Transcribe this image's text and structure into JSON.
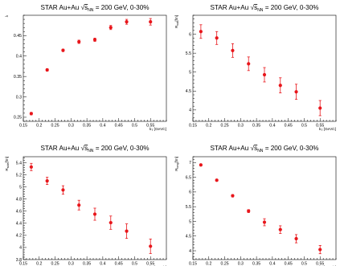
{
  "chart_data": [
    {
      "type": "scatter",
      "title_prefix": "STAR Au+Au",
      "title_sqrt_s": "s",
      "title_sqrt_sub": "NN",
      "title_suffix": "= 200 GeV, 0-30%",
      "ylabel": "λ",
      "ylabel_sub": "",
      "ylabel_unit": "",
      "xlabel": "k",
      "xlabel_sub": "T",
      "xlabel_unit": "[GeV/c]",
      "xlim": [
        0.15,
        0.6
      ],
      "ylim": [
        0.24,
        0.5
      ],
      "xticks": [
        0.15,
        0.2,
        0.25,
        0.3,
        0.35,
        0.4,
        0.45,
        0.5,
        0.55
      ],
      "xtick_labels": [
        "0.15",
        "0.2",
        "0.25",
        "0.3",
        "0.35",
        "0.4",
        "0.45",
        "0.5",
        "0.55"
      ],
      "yticks": [
        0.25,
        0.3,
        0.35,
        0.4,
        0.45
      ],
      "ytick_labels": [
        "0.25",
        "0.3",
        "0.35",
        "0.4",
        "0.45"
      ],
      "color": "#e8161b",
      "x": [
        0.175,
        0.225,
        0.275,
        0.325,
        0.375,
        0.425,
        0.475,
        0.55
      ],
      "y": [
        0.259,
        0.366,
        0.414,
        0.435,
        0.44,
        0.47,
        0.484,
        0.484
      ],
      "yerr": [
        0.003,
        0.003,
        0.003,
        0.004,
        0.004,
        0.005,
        0.006,
        0.008
      ]
    },
    {
      "type": "scatter",
      "title_prefix": "STAR Au+Au",
      "title_sqrt_s": "s",
      "title_sqrt_sub": "NN",
      "title_suffix": "= 200 GeV, 0-30%",
      "ylabel": "R",
      "ylabel_sub": "out",
      "ylabel_unit": "[fm]",
      "xlabel": "k",
      "xlabel_sub": "T",
      "xlabel_unit": "[GeV/c]",
      "xlim": [
        0.15,
        0.6
      ],
      "ylim": [
        3.7,
        6.5
      ],
      "xticks": [
        0.15,
        0.2,
        0.25,
        0.3,
        0.35,
        0.4,
        0.45,
        0.5,
        0.55
      ],
      "xtick_labels": [
        "0.15",
        "0.2",
        "0.25",
        "0.3",
        "0.35",
        "0.4",
        "0.45",
        "0.5",
        "0.55"
      ],
      "yticks": [
        4,
        4.5,
        5,
        5.5,
        6
      ],
      "ytick_labels": [
        "4",
        "4.5",
        "5",
        "5.5",
        "6"
      ],
      "color": "#e8161b",
      "x": [
        0.175,
        0.225,
        0.275,
        0.325,
        0.375,
        0.425,
        0.475,
        0.55
      ],
      "y": [
        6.07,
        5.9,
        5.57,
        5.22,
        4.93,
        4.65,
        4.48,
        4.05
      ],
      "yerr": [
        0.18,
        0.17,
        0.18,
        0.18,
        0.19,
        0.2,
        0.2,
        0.2
      ]
    },
    {
      "type": "scatter",
      "title_prefix": "STAR Au+Au",
      "title_sqrt_s": "s",
      "title_sqrt_sub": "NN",
      "title_suffix": "= 200 GeV, 0-30%",
      "ylabel": "R",
      "ylabel_sub": "side",
      "ylabel_unit": "[fm]",
      "xlabel": "k",
      "xlabel_sub": "T",
      "xlabel_unit": "[GeV/c]",
      "xlim": [
        0.15,
        0.6
      ],
      "ylim": [
        3.8,
        5.5
      ],
      "xticks": [
        0.15,
        0.2,
        0.25,
        0.3,
        0.35,
        0.4,
        0.45,
        0.5,
        0.55
      ],
      "xtick_labels": [
        "0.15",
        "0.2",
        "0.25",
        "0.3",
        "0.35",
        "0.4",
        "0.45",
        "0.5",
        "0.55"
      ],
      "yticks": [
        3.8,
        4,
        4.2,
        4.4,
        4.6,
        4.8,
        5,
        5.2,
        5.4
      ],
      "ytick_labels": [
        "3.8",
        "4",
        "4.2",
        "4.4",
        "4.6",
        "4.8",
        "5",
        "5.2",
        "5.4"
      ],
      "color": "#e8161b",
      "x": [
        0.175,
        0.225,
        0.275,
        0.325,
        0.375,
        0.425,
        0.475,
        0.55
      ],
      "y": [
        5.33,
        5.1,
        4.95,
        4.7,
        4.55,
        4.41,
        4.27,
        4.02
      ],
      "yerr": [
        0.06,
        0.06,
        0.07,
        0.08,
        0.1,
        0.11,
        0.12,
        0.12
      ]
    },
    {
      "type": "scatter",
      "title_prefix": "STAR Au+Au",
      "title_sqrt_s": "s",
      "title_sqrt_sub": "NN",
      "title_suffix": "= 200 GeV, 0-30%",
      "ylabel": "R",
      "ylabel_sub": "long",
      "ylabel_unit": "[fm]",
      "xlabel": "k",
      "xlabel_sub": "T",
      "xlabel_unit": "[GeV/c]",
      "xlim": [
        0.15,
        0.6
      ],
      "ylim": [
        3.7,
        7.2
      ],
      "xticks": [
        0.15,
        0.2,
        0.25,
        0.3,
        0.35,
        0.4,
        0.45,
        0.5,
        0.55
      ],
      "xtick_labels": [
        "0.15",
        "0.2",
        "0.25",
        "0.3",
        "0.35",
        "0.4",
        "0.45",
        "0.5",
        "0.55"
      ],
      "yticks": [
        4,
        4.5,
        5,
        5.5,
        6,
        6.5,
        7
      ],
      "ytick_labels": [
        "4",
        "4.5",
        "5",
        "5.5",
        "6",
        "6.5",
        "7"
      ],
      "color": "#e8161b",
      "x": [
        0.175,
        0.225,
        0.275,
        0.325,
        0.375,
        0.425,
        0.475,
        0.55
      ],
      "y": [
        6.92,
        6.4,
        5.87,
        5.35,
        4.97,
        4.72,
        4.41,
        4.04
      ],
      "yerr": [
        0.03,
        0.03,
        0.04,
        0.05,
        0.12,
        0.13,
        0.14,
        0.14
      ]
    }
  ]
}
